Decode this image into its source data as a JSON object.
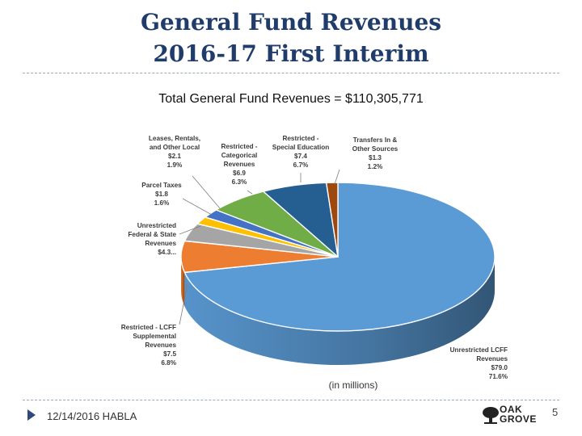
{
  "slide": {
    "title_line1": "General Fund Revenues",
    "title_line2": "2016-17 First Interim",
    "footer_text": "12/14/2016 HABLA",
    "page_number": "5",
    "logo_word1": "OAK",
    "logo_word2": "GROVE"
  },
  "chart_data": {
    "type": "pie",
    "title": "Total General Fund Revenues = $110,305,771",
    "note": "(in millions)",
    "slices": [
      {
        "name": "Unrestricted LCFF Revenues",
        "value": 79.0,
        "percent": 71.6,
        "value_label": "$79.0",
        "percent_label": "71.6%",
        "color": "#5b9bd5"
      },
      {
        "name": "Restricted - LCFF Supplemental Revenues",
        "value": 7.5,
        "percent": 6.8,
        "value_label": "$7.5",
        "percent_label": "6.8%",
        "color": "#ed7d31"
      },
      {
        "name": "Unrestricted Federal & State Revenues",
        "value": 4.3,
        "percent": 3.9,
        "value_label": "$4.3...",
        "percent_label": "",
        "color": "#a5a5a5"
      },
      {
        "name": "Parcel Taxes",
        "value": 1.8,
        "percent": 1.6,
        "value_label": "$1.8",
        "percent_label": "1.6%",
        "color": "#ffc000"
      },
      {
        "name": "Leases, Rentals, and Other Local",
        "value": 2.1,
        "percent": 1.9,
        "value_label": "$2.1",
        "percent_label": "1.9%",
        "color": "#4472c4"
      },
      {
        "name": "Restricted - Categorical Revenues",
        "value": 6.9,
        "percent": 6.3,
        "value_label": "$6.9",
        "percent_label": "6.3%",
        "color": "#70ad47"
      },
      {
        "name": "Restricted - Special Education",
        "value": 7.4,
        "percent": 6.7,
        "value_label": "$7.4",
        "percent_label": "6.7%",
        "color": "#255e91"
      },
      {
        "name": "Transfers In & Other Sources",
        "value": 1.3,
        "percent": 1.2,
        "value_label": "$1.3",
        "percent_label": "1.2%",
        "color": "#9e480e"
      }
    ]
  }
}
